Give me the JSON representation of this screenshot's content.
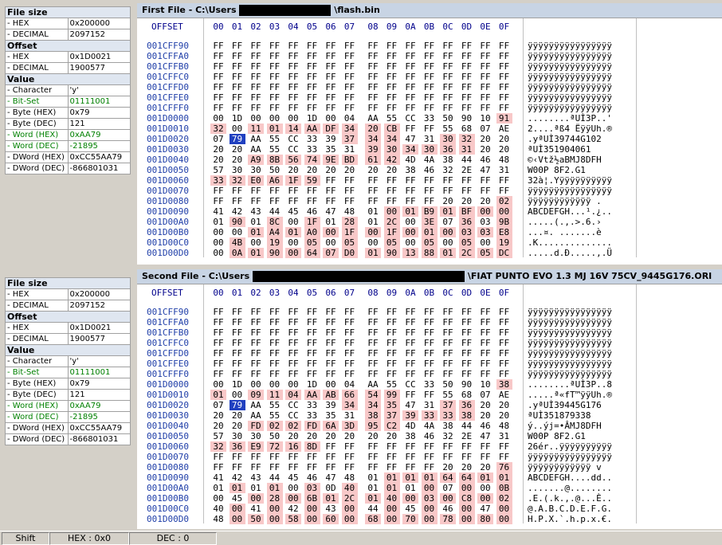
{
  "panels": [
    {
      "title": "First File - C:\\Users",
      "title_suffix": "\\flash.bin",
      "info": {
        "file_size_title": "File size",
        "hex_label": "- HEX",
        "hex_value": "0x200000",
        "decimal_label": "- DECIMAL",
        "decimal_value": "2097152",
        "offset_title": "Offset",
        "off_hex_label": "- HEX",
        "off_hex_value": "0x1D0021",
        "off_dec_label": "- DECIMAL",
        "off_dec_value": "1900577",
        "value_title": "Value",
        "char_label": "- Character",
        "char_value": "'y'",
        "bitset_label": "- Bit-Set",
        "bitset_value": "01111001",
        "bytehex_label": "- Byte (HEX)",
        "bytehex_value": "0x79",
        "bytedec_label": "- Byte (DEC)",
        "bytedec_value": "121",
        "wordhex_label": "- Word (HEX)",
        "wordhex_value": "0xAA79",
        "worddec_label": "- Word (DEC)",
        "worddec_value": "-21895",
        "dwordhex_label": "- DWord (HEX)",
        "dwordhex_value": "0xCC55AA79",
        "dworddec_label": "- DWord (DEC)",
        "dworddec_value": "-866801031"
      },
      "rows": [
        {
          "off": "001CFF90",
          "bytes": "FF FF FF FF FF FF FF FF FF FF FF FF FF FF FF FF",
          "diff": [],
          "ascii": "ÿÿÿÿÿÿÿÿÿÿÿÿÿÿÿÿ"
        },
        {
          "off": "001CFFA0",
          "bytes": "FF FF FF FF FF FF FF FF FF FF FF FF FF FF FF FF",
          "diff": [],
          "ascii": "ÿÿÿÿÿÿÿÿÿÿÿÿÿÿÿÿ"
        },
        {
          "off": "001CFFB0",
          "bytes": "FF FF FF FF FF FF FF FF FF FF FF FF FF FF FF FF",
          "diff": [],
          "ascii": "ÿÿÿÿÿÿÿÿÿÿÿÿÿÿÿÿ"
        },
        {
          "off": "001CFFC0",
          "bytes": "FF FF FF FF FF FF FF FF FF FF FF FF FF FF FF FF",
          "diff": [],
          "ascii": "ÿÿÿÿÿÿÿÿÿÿÿÿÿÿÿÿ"
        },
        {
          "off": "001CFFD0",
          "bytes": "FF FF FF FF FF FF FF FF FF FF FF FF FF FF FF FF",
          "diff": [],
          "ascii": "ÿÿÿÿÿÿÿÿÿÿÿÿÿÿÿÿ"
        },
        {
          "off": "001CFFE0",
          "bytes": "FF FF FF FF FF FF FF FF FF FF FF FF FF FF FF FF",
          "diff": [],
          "ascii": "ÿÿÿÿÿÿÿÿÿÿÿÿÿÿÿÿ"
        },
        {
          "off": "001CFFF0",
          "bytes": "FF FF FF FF FF FF FF FF FF FF FF FF FF FF FF FF",
          "diff": [],
          "ascii": "ÿÿÿÿÿÿÿÿÿÿÿÿÿÿÿÿ"
        },
        {
          "off": "001D0000",
          "bytes": "00 1D 00 00 00 1D 00 04 AA 55 CC 33 50 90 10 91",
          "diff": [
            15
          ],
          "ascii": "........ªUÌ3P..'"
        },
        {
          "off": "001D0010",
          "bytes": "32 00 11 01 14 AA DF 34 20 CB FF FF 55 68 07 AE",
          "diff": [
            0,
            2,
            3,
            4,
            5,
            6,
            7,
            8,
            9
          ],
          "ascii": "2....ªß4 ËÿÿUh.®"
        },
        {
          "off": "001D0020",
          "bytes": "07 79 AA 55 CC 33 39 37 34 34 47 31 30 32 20 20",
          "diff": [
            7,
            8,
            9,
            12,
            13
          ],
          "ascii": ".yªUÌ39744G102  "
        },
        {
          "off": "001D0030",
          "bytes": "20 20 AA 55 CC 33 35 31 39 30 34 30 36 31 20 20",
          "diff": [
            8,
            9,
            10,
            11,
            12,
            13
          ],
          "ascii": "  ªUÌ351904061  "
        },
        {
          "off": "001D0040",
          "bytes": "20 20 A9 8B 56 74 9E BD 61 42 4D 4A 38 44 46 48",
          "diff": [
            2,
            3,
            4,
            5,
            6,
            7,
            8,
            9
          ],
          "ascii": "  ©‹Vtž½aBMJ8DFH"
        },
        {
          "off": "001D0050",
          "bytes": "57 30 30 50 20 20 20 20 20 20 38 46 32 2E 47 31",
          "diff": [],
          "ascii": "W00P      8F2.G1"
        },
        {
          "off": "001D0060",
          "bytes": "33 32 E0 A6 1F 59 FF FF FF FF FF FF FF FF FF FF",
          "diff": [
            0,
            1,
            2,
            3,
            4,
            5
          ],
          "ascii": "32à¦.Yÿÿÿÿÿÿÿÿÿÿ"
        },
        {
          "off": "001D0070",
          "bytes": "FF FF FF FF FF FF FF FF FF FF FF FF FF FF FF FF",
          "diff": [],
          "ascii": "ÿÿÿÿÿÿÿÿÿÿÿÿÿÿÿÿ"
        },
        {
          "off": "001D0080",
          "bytes": "FF FF FF FF FF FF FF FF FF FF FF FF 20 20 20 02",
          "diff": [
            15
          ],
          "ascii": "ÿÿÿÿÿÿÿÿÿÿÿÿ   ."
        },
        {
          "off": "001D0090",
          "bytes": "41 42 43 44 45 46 47 48 01 00 01 B9 01 BF 00 00",
          "diff": [
            9,
            10,
            11,
            12,
            13,
            14,
            15
          ],
          "ascii": "ABCDEFGH...¹.¿.."
        },
        {
          "off": "001D00A0",
          "bytes": "01 90 01 8C 00 1F 01 28 01 2C 00 3E 07 36 03 9B",
          "diff": [
            1,
            3,
            5,
            7,
            9,
            11,
            13,
            15
          ],
          "ascii": ".....(.,.>.6.›"
        },
        {
          "off": "001D00B0",
          "bytes": "00 00 01 A4 01 A0 00 1F 00 1F 00 01 00 03 03 E8",
          "diff": [
            2,
            3,
            4,
            5,
            6,
            7,
            8,
            9,
            10,
            11,
            12,
            13,
            14,
            15
          ],
          "ascii": "...¤. .......è"
        },
        {
          "off": "001D00C0",
          "bytes": "00 4B 00 19 00 05 00 05 00 05 00 05 00 05 00 19",
          "diff": [
            1,
            3,
            5,
            7,
            9,
            11,
            13,
            15
          ],
          "ascii": ".K.............."
        },
        {
          "off": "001D00D0",
          "bytes": "00 0A 01 90 00 64 07 D0 01 90 13 88 01 2C 05 DC",
          "diff": [
            1,
            2,
            3,
            4,
            5,
            6,
            7,
            8,
            9,
            10,
            11,
            12,
            13,
            14,
            15
          ],
          "ascii": ".....d.Ð.....,.Ü"
        }
      ]
    },
    {
      "title": "Second File - C:\\Users",
      "title_suffix": "\\FIAT PUNTO EVO 1.3 MJ 16V 75CV_9445G176.ORI",
      "info": {
        "file_size_title": "File size",
        "hex_label": "- HEX",
        "hex_value": "0x200000",
        "decimal_label": "- DECIMAL",
        "decimal_value": "2097152",
        "offset_title": "Offset",
        "off_hex_label": "- HEX",
        "off_hex_value": "0x1D0021",
        "off_dec_label": "- DECIMAL",
        "off_dec_value": "1900577",
        "value_title": "Value",
        "char_label": "- Character",
        "char_value": "'y'",
        "bitset_label": "- Bit-Set",
        "bitset_value": "01111001",
        "bytehex_label": "- Byte (HEX)",
        "bytehex_value": "0x79",
        "bytedec_label": "- Byte (DEC)",
        "bytedec_value": "121",
        "wordhex_label": "- Word (HEX)",
        "wordhex_value": "0xAA79",
        "worddec_label": "- Word (DEC)",
        "worddec_value": "-21895",
        "dwordhex_label": "- DWord (HEX)",
        "dwordhex_value": "0xCC55AA79",
        "dworddec_label": "- DWord (DEC)",
        "dworddec_value": "-866801031"
      },
      "rows": [
        {
          "off": "001CFF90",
          "bytes": "FF FF FF FF FF FF FF FF FF FF FF FF FF FF FF FF",
          "diff": [],
          "ascii": "ÿÿÿÿÿÿÿÿÿÿÿÿÿÿÿÿ"
        },
        {
          "off": "001CFFA0",
          "bytes": "FF FF FF FF FF FF FF FF FF FF FF FF FF FF FF FF",
          "diff": [],
          "ascii": "ÿÿÿÿÿÿÿÿÿÿÿÿÿÿÿÿ"
        },
        {
          "off": "001CFFB0",
          "bytes": "FF FF FF FF FF FF FF FF FF FF FF FF FF FF FF FF",
          "diff": [],
          "ascii": "ÿÿÿÿÿÿÿÿÿÿÿÿÿÿÿÿ"
        },
        {
          "off": "001CFFC0",
          "bytes": "FF FF FF FF FF FF FF FF FF FF FF FF FF FF FF FF",
          "diff": [],
          "ascii": "ÿÿÿÿÿÿÿÿÿÿÿÿÿÿÿÿ"
        },
        {
          "off": "001CFFD0",
          "bytes": "FF FF FF FF FF FF FF FF FF FF FF FF FF FF FF FF",
          "diff": [],
          "ascii": "ÿÿÿÿÿÿÿÿÿÿÿÿÿÿÿÿ"
        },
        {
          "off": "001CFFE0",
          "bytes": "FF FF FF FF FF FF FF FF FF FF FF FF FF FF FF FF",
          "diff": [],
          "ascii": "ÿÿÿÿÿÿÿÿÿÿÿÿÿÿÿÿ"
        },
        {
          "off": "001CFFF0",
          "bytes": "FF FF FF FF FF FF FF FF FF FF FF FF FF FF FF FF",
          "diff": [],
          "ascii": "ÿÿÿÿÿÿÿÿÿÿÿÿÿÿÿÿ"
        },
        {
          "off": "001D0000",
          "bytes": "00 1D 00 00 00 1D 00 04 AA 55 CC 33 50 90 10 38",
          "diff": [
            15
          ],
          "ascii": "........ªUÌ3P..8"
        },
        {
          "off": "001D0010",
          "bytes": "01 00 09 11 04 AA AB 66 54 99 FF FF 55 68 07 AE",
          "diff": [
            0,
            2,
            3,
            4,
            5,
            6,
            7,
            8,
            9
          ],
          "ascii": ".....ª«fT™ÿÿUh.®"
        },
        {
          "off": "001D0020",
          "bytes": "07 79 AA 55 CC 33 39 34 34 35 47 31 37 36 20 20",
          "diff": [
            7,
            8,
            9,
            12,
            13
          ],
          "ascii": ".yªUÌ39445G176  "
        },
        {
          "off": "001D0030",
          "bytes": "20 20 AA 55 CC 33 35 31 38 37 39 33 33 38 20 20",
          "diff": [
            8,
            9,
            10,
            11,
            12,
            13
          ],
          "ascii": "  ªUÌ351879338  "
        },
        {
          "off": "001D0040",
          "bytes": "20 20 FD 02 02 FD 6A 3D 95 C2 4D 4A 38 44 46 48",
          "diff": [
            2,
            3,
            4,
            5,
            6,
            7,
            8,
            9
          ],
          "ascii": "  ý..ýj=•ÂMJ8DFH"
        },
        {
          "off": "001D0050",
          "bytes": "57 30 30 50 20 20 20 20 20 20 38 46 32 2E 47 31",
          "diff": [],
          "ascii": "W00P      8F2.G1"
        },
        {
          "off": "001D0060",
          "bytes": "32 36 E9 72 16 8D FF FF FF FF FF FF FF FF FF FF",
          "diff": [
            0,
            1,
            2,
            3,
            4,
            5
          ],
          "ascii": "26ér..ÿÿÿÿÿÿÿÿÿÿ"
        },
        {
          "off": "001D0070",
          "bytes": "FF FF FF FF FF FF FF FF FF FF FF FF FF FF FF FF",
          "diff": [],
          "ascii": "ÿÿÿÿÿÿÿÿÿÿÿÿÿÿÿÿ"
        },
        {
          "off": "001D0080",
          "bytes": "FF FF FF FF FF FF FF FF FF FF FF FF 20 20 20 76",
          "diff": [
            15
          ],
          "ascii": "ÿÿÿÿÿÿÿÿÿÿÿÿ   v"
        },
        {
          "off": "001D0090",
          "bytes": "41 42 43 44 45 46 47 48 01 01 01 01 64 64 01 01",
          "diff": [
            9,
            10,
            11,
            12,
            13,
            14,
            15
          ],
          "ascii": "ABCDEFGH....dd.."
        },
        {
          "off": "001D00A0",
          "bytes": "01 01 01 01 00 03 0D 40 01 01 01 00 07 00 00 0B",
          "diff": [
            1,
            3,
            5,
            7,
            9,
            11,
            13,
            15
          ],
          "ascii": ".......@........"
        },
        {
          "off": "001D00B0",
          "bytes": "00 45 00 28 00 6B 01 2C 01 40 00 03 00 C8 00 02",
          "diff": [
            2,
            3,
            4,
            5,
            6,
            7,
            8,
            9,
            10,
            11,
            12,
            13,
            14,
            15
          ],
          "ascii": ".E.(.k.,.@...È.."
        },
        {
          "off": "001D00C0",
          "bytes": "40 00 41 00 42 00 43 00 44 00 45 00 46 00 47 00",
          "diff": [
            1,
            3,
            5,
            7,
            9,
            11,
            13,
            15
          ],
          "ascii": "@.A.B.C.D.E.F.G."
        },
        {
          "off": "001D00D0",
          "bytes": "48 00 50 00 58 00 60 00 68 00 70 00 78 00 80 00",
          "diff": [
            1,
            2,
            3,
            4,
            5,
            6,
            7,
            8,
            9,
            10,
            11,
            12,
            13,
            14,
            15
          ],
          "ascii": "H.P.X.`.h.p.x.€."
        }
      ]
    }
  ],
  "header": {
    "offset_label": "OFFSET",
    "cols": [
      "00",
      "01",
      "02",
      "03",
      "04",
      "05",
      "06",
      "07",
      "08",
      "09",
      "0A",
      "0B",
      "0C",
      "0D",
      "0E",
      "0F"
    ]
  },
  "status": {
    "shift": "Shift",
    "hex": "HEX : 0x0",
    "dec": "DEC : 0"
  }
}
